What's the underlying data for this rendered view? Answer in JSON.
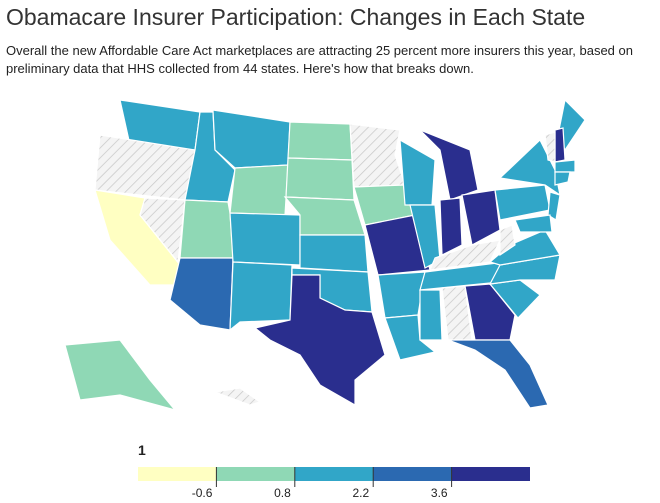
{
  "header": {
    "title": "Obamacare Insurer Participation: Changes in Each State",
    "subtitle": "Overall the new Affordable Care Act marketplaces are attracting 25 percent more insurers this year, based on preliminary data that HHS collected from 44 states. Here's how that breaks down."
  },
  "map": {
    "colors": [
      "#ffffc2",
      "#8fd8b5",
      "#31a6c8",
      "#2b69b1",
      "#2a2e8e"
    ],
    "no_data_color": "#e6e6e6",
    "regions": [
      2,
      null,
      0,
      null,
      2,
      2,
      1,
      1,
      3,
      2,
      2,
      1,
      1,
      1,
      2,
      2,
      4,
      null,
      1,
      4,
      2,
      2,
      2,
      2,
      4,
      4,
      4,
      null,
      2,
      2,
      null,
      4,
      3,
      2,
      2,
      2,
      null,
      2,
      2,
      2,
      4,
      null,
      2,
      2,
      2,
      2,
      1,
      null
    ]
  },
  "legend": {
    "title": "1",
    "ticks": [
      -0.6,
      0.8,
      2.2,
      3.6
    ]
  }
}
